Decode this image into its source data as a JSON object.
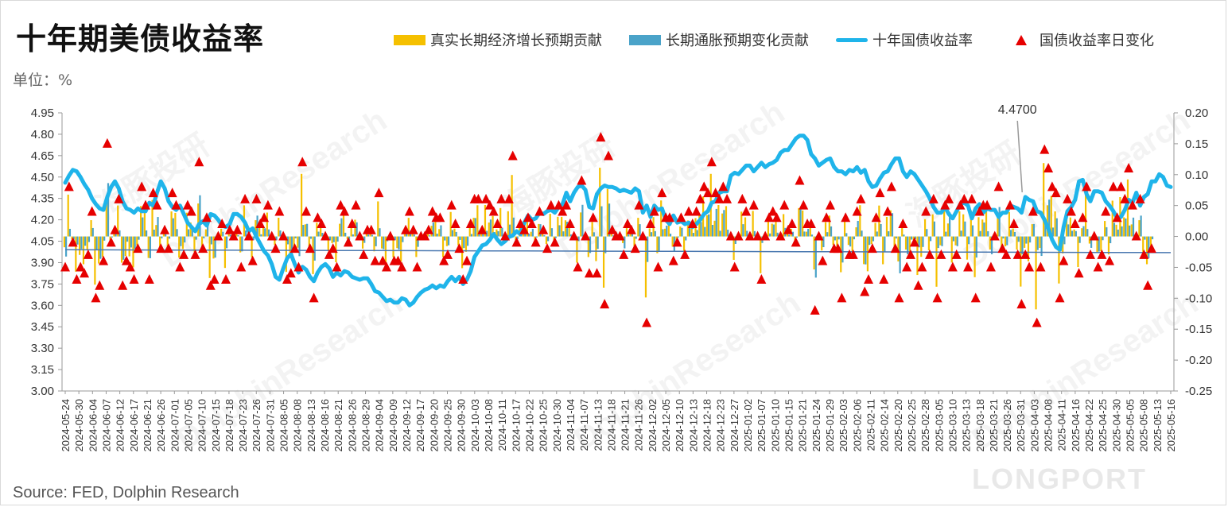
{
  "title": "十年期美债收益率",
  "unit_label": "单位：%",
  "source": "Source: FED, Dolphin Research",
  "watermark": {
    "cn": "海豚投研",
    "en": "DolphinResearch",
    "brand": "LONGPORT"
  },
  "legend": [
    {
      "label": "真实长期经济增长预期贡献",
      "kind": "bar",
      "color": "#f5c000"
    },
    {
      "label": "长期通胀预期变化贡献",
      "kind": "bar",
      "color": "#4aa3c9"
    },
    {
      "label": "十年国债收益率",
      "kind": "line",
      "color": "#1fb4ea"
    },
    {
      "label": "国债收益率日变化",
      "kind": "marker",
      "color": "#e60000"
    }
  ],
  "chart_data": {
    "type": "line",
    "annotation": "4.4700",
    "x_tick_labels": [
      "2024-05-24",
      "2024-05-30",
      "2024-06-04",
      "2024-06-07",
      "2024-06-12",
      "2024-06-17",
      "2024-06-21",
      "2024-06-26",
      "2024-07-01",
      "2024-07-05",
      "2024-07-10",
      "2024-07-15",
      "2024-07-18",
      "2024-07-23",
      "2024-07-26",
      "2024-07-31",
      "2024-08-05",
      "2024-08-08",
      "2024-08-13",
      "2024-08-16",
      "2024-08-21",
      "2024-08-26",
      "2024-08-29",
      "2024-09-04",
      "2024-09-09",
      "2024-09-12",
      "2024-09-17",
      "2024-09-20",
      "2024-09-25",
      "2024-09-30",
      "2024-10-03",
      "2024-10-08",
      "2024-10-11",
      "2024-10-17",
      "2024-10-22",
      "2024-10-25",
      "2024-10-30",
      "2024-11-04",
      "2024-11-07",
      "2024-11-13",
      "2024-11-18",
      "2024-11-21",
      "2024-11-26",
      "2024-12-02",
      "2024-12-05",
      "2024-12-10",
      "2024-12-13",
      "2024-12-18",
      "2024-12-23",
      "2024-12-27",
      "2025-01-02",
      "2025-01-07",
      "2025-01-10",
      "2025-01-15",
      "2025-01-21",
      "2025-01-24",
      "2025-01-29",
      "2025-02-03",
      "2025-02-06",
      "2025-02-11",
      "2025-02-14",
      "2025-02-20",
      "2025-02-25",
      "2025-02-28",
      "2025-03-05",
      "2025-03-10",
      "2025-03-13",
      "2025-03-18",
      "2025-03-21",
      "2025-03-26",
      "2025-03-31",
      "2025-04-03",
      "2025-04-08",
      "2025-04-11",
      "2025-04-16",
      "2025-04-22",
      "2025-04-25",
      "2025-04-30",
      "2025-05-05",
      "2025-05-08",
      "2025-05-13",
      "2025-05-16"
    ],
    "y_left": {
      "min": 3.0,
      "max": 4.95,
      "step": 0.15
    },
    "y_right": {
      "min": -0.25,
      "max": 0.2,
      "step": 0.05
    },
    "ten_year_yield": [
      4.46,
      4.51,
      4.55,
      4.54,
      4.5,
      4.45,
      4.41,
      4.35,
      4.31,
      4.28,
      4.27,
      4.36,
      4.43,
      4.47,
      4.42,
      4.33,
      4.28,
      4.27,
      4.25,
      4.28,
      4.26,
      4.26,
      4.32,
      4.3,
      4.39,
      4.47,
      4.42,
      4.33,
      4.29,
      4.27,
      4.3,
      4.24,
      4.18,
      4.15,
      4.12,
      4.17,
      4.19,
      4.16,
      4.24,
      4.23,
      4.2,
      4.16,
      4.15,
      4.17,
      4.24,
      4.24,
      4.22,
      4.18,
      4.12,
      4.14,
      4.08,
      4.03,
      3.98,
      3.95,
      3.89,
      3.8,
      3.78,
      3.86,
      3.93,
      3.96,
      3.89,
      3.83,
      3.87,
      3.85,
      3.8,
      3.77,
      3.83,
      3.87,
      3.89,
      3.86,
      3.8,
      3.83,
      3.81,
      3.84,
      3.83,
      3.8,
      3.79,
      3.78,
      3.79,
      3.79,
      3.75,
      3.7,
      3.69,
      3.66,
      3.63,
      3.64,
      3.62,
      3.62,
      3.65,
      3.64,
      3.6,
      3.62,
      3.66,
      3.69,
      3.71,
      3.72,
      3.74,
      3.72,
      3.74,
      3.73,
      3.77,
      3.8,
      3.77,
      3.8,
      3.75,
      3.78,
      3.84,
      3.94,
      3.98,
      4.02,
      4.03,
      4.06,
      4.1,
      4.06,
      4.03,
      4.05,
      4.08,
      4.09,
      4.12,
      4.1,
      4.18,
      4.23,
      4.2,
      4.21,
      4.25,
      4.24,
      4.26,
      4.27,
      4.25,
      4.29,
      4.31,
      4.39,
      4.33,
      4.39,
      4.43,
      4.44,
      4.41,
      4.29,
      4.28,
      4.38,
      4.42,
      4.44,
      4.43,
      4.43,
      4.42,
      4.4,
      4.41,
      4.4,
      4.39,
      4.42,
      4.4,
      4.25,
      4.3,
      4.22,
      4.3,
      4.27,
      4.28,
      4.2,
      4.17,
      4.23,
      4.18,
      4.19,
      4.17,
      4.18,
      4.15,
      4.17,
      4.2,
      4.24,
      4.26,
      4.32,
      4.33,
      4.39,
      4.4,
      4.4,
      4.51,
      4.53,
      4.52,
      4.55,
      4.58,
      4.58,
      4.54,
      4.57,
      4.6,
      4.57,
      4.59,
      4.6,
      4.62,
      4.67,
      4.69,
      4.69,
      4.73,
      4.77,
      4.79,
      4.79,
      4.76,
      4.66,
      4.63,
      4.58,
      4.6,
      4.62,
      4.63,
      4.57,
      4.54,
      4.54,
      4.52,
      4.55,
      4.54,
      4.57,
      4.53,
      4.55,
      4.47,
      4.43,
      4.44,
      4.49,
      4.53,
      4.54,
      4.59,
      4.63,
      4.63,
      4.54,
      4.5,
      4.54,
      4.52,
      4.48,
      4.44,
      4.4,
      4.35,
      4.29,
      4.25,
      4.25,
      4.29,
      4.24,
      4.21,
      4.26,
      4.31,
      4.32,
      4.3,
      4.21,
      4.28,
      4.31,
      4.25,
      4.28,
      4.27,
      4.27,
      4.22,
      4.25,
      4.25,
      4.3,
      4.29,
      4.28,
      4.25,
      4.36,
      4.34,
      4.33,
      4.26,
      4.25,
      4.2,
      4.14,
      4.06,
      4.01,
      3.99,
      4.15,
      4.26,
      4.29,
      4.34,
      4.47,
      4.48,
      4.38,
      4.33,
      4.4,
      4.4,
      4.39,
      4.33,
      4.3,
      4.26,
      4.21,
      4.22,
      4.27,
      4.34,
      4.32,
      4.39,
      4.3,
      4.36,
      4.38,
      4.47,
      4.47,
      4.52,
      4.5,
      4.44,
      4.43
    ],
    "daily_change": [
      -0.05,
      0.08,
      -0.01,
      -0.07,
      -0.05,
      -0.06,
      -0.03,
      0.04,
      -0.1,
      -0.08,
      -0.04,
      0.15,
      -0.01,
      0.01,
      0.06,
      -0.08,
      -0.04,
      -0.05,
      -0.07,
      -0.02,
      0.08,
      0.05,
      -0.07,
      0.07,
      0.05,
      -0.02,
      0.01,
      -0.02,
      0.07,
      0.05,
      -0.05,
      -0.03,
      0.05,
      0.04,
      -0.03,
      0.12,
      -0.02,
      0.03,
      -0.08,
      -0.07,
      0.0,
      0.02,
      -0.07,
      0.01,
      0.0,
      0.01,
      -0.05,
      0.06,
      0.0,
      -0.04,
      0.06,
      0.02,
      0.03,
      0.05,
      0.0,
      -0.02,
      0.04,
      0.0,
      -0.07,
      -0.06,
      -0.02,
      -0.05,
      0.12,
      0.04,
      -0.02,
      -0.1,
      0.03,
      0.02,
      0.0,
      -0.03,
      -0.02,
      -0.05,
      0.05,
      0.04,
      -0.01,
      0.02,
      0.05,
      0.0,
      -0.03,
      0.01,
      0.01,
      -0.04,
      0.07,
      -0.04,
      -0.05,
      0.0,
      -0.04,
      -0.04,
      -0.05,
      0.01,
      0.04,
      0.01,
      -0.05,
      0.0,
      0.0,
      0.01,
      0.04,
      0.03,
      0.03,
      -0.04,
      -0.03,
      0.05,
      0.02,
      -0.02,
      -0.07,
      -0.04,
      0.02,
      0.06,
      0.06,
      0.01,
      0.06,
      0.05,
      0.04,
      0.02,
      0.06,
      0.0,
      0.06,
      0.13,
      -0.01,
      0.02,
      0.01,
      0.03,
      0.02,
      -0.01,
      0.04,
      0.01,
      -0.02,
      0.05,
      -0.01,
      0.05,
      0.04,
      0.05,
      0.02,
      0.0,
      -0.05,
      0.09,
      0.0,
      -0.06,
      0.03,
      -0.06,
      0.16,
      -0.11,
      0.13,
      0.01,
      0.0,
      0.0,
      -0.03,
      0.02,
      0.01,
      -0.02,
      0.05,
      0.0,
      -0.14,
      0.02,
      0.04,
      -0.05,
      0.07,
      0.03,
      0.03,
      -0.04,
      -0.01,
      0.03,
      -0.03,
      0.04,
      0.02,
      0.04,
      0.06,
      0.08,
      0.07,
      0.12,
      0.07,
      0.06,
      0.08,
      0.06,
      0.0,
      -0.05,
      0.0,
      0.06,
      0.04,
      0.0,
      0.05,
      0.0,
      -0.07,
      0.0,
      0.03,
      0.04,
      0.03,
      0.0,
      0.05,
      0.01,
      0.02,
      -0.01,
      0.09,
      0.05,
      0.02,
      0.02,
      -0.12,
      0.0,
      -0.04,
      0.03,
      0.05,
      -0.02,
      -0.02,
      -0.1,
      0.03,
      -0.03,
      -0.03,
      0.04,
      0.06,
      -0.09,
      -0.07,
      -0.02,
      0.03,
      0.07,
      -0.07,
      0.04,
      0.08,
      -0.02,
      -0.1,
      0.02,
      -0.05,
      -0.03,
      -0.01,
      -0.08,
      -0.05,
      0.04,
      -0.03,
      0.06,
      -0.1,
      -0.03,
      0.05,
      0.06,
      -0.05,
      -0.03,
      0.05,
      0.06,
      -0.05,
      0.06,
      -0.1,
      0.04,
      0.05,
      0.05,
      -0.05,
      0.0,
      0.08,
      -0.02,
      -0.03,
      0.05,
      0.02,
      -0.03,
      -0.11,
      -0.03,
      -0.05,
      0.04,
      -0.14,
      -0.05,
      0.14,
      0.11,
      0.08,
      0.07,
      -0.1,
      -0.04,
      0.06,
      0.04,
      0.02,
      -0.06,
      0.03,
      0.08,
      -0.03,
      0.0,
      -0.05,
      -0.03,
      0.04,
      -0.04,
      0.08,
      0.03,
      0.08,
      0.06,
      0.11,
      0.05,
      0.0,
      0.06,
      -0.03,
      -0.08,
      -0.02
    ],
    "line_series": [
      {
        "name": "十年国债收益率",
        "axis": "left"
      }
    ],
    "bar_series": [
      {
        "name": "真实长期经济增长预期贡献",
        "axis": "right"
      },
      {
        "name": "长期通胀预期变化贡献",
        "axis": "right"
      }
    ],
    "marker_series": {
      "name": "国债收益率日变化",
      "axis": "right"
    }
  }
}
